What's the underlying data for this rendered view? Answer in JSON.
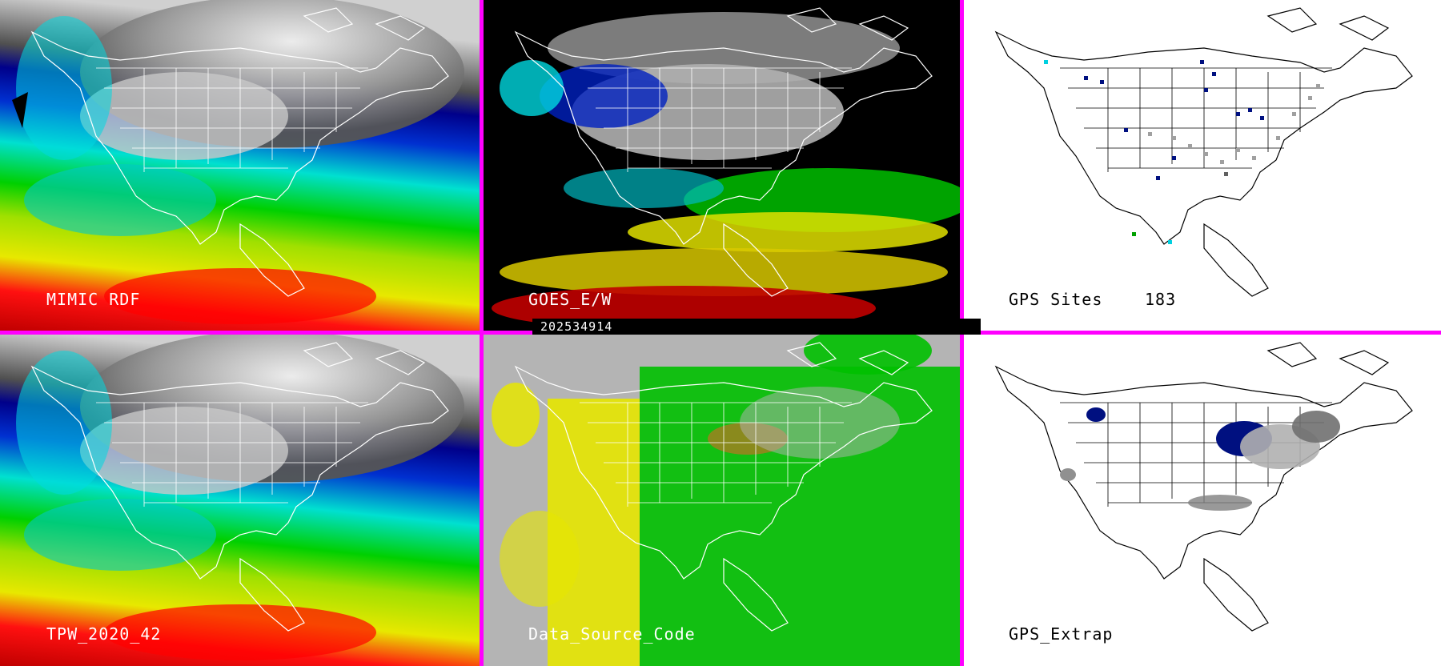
{
  "panels": {
    "mimic": {
      "label": "MIMIC RDF"
    },
    "goes": {
      "label": "GOES_E/W"
    },
    "gps_sites": {
      "label": "GPS Sites",
      "count": "183"
    },
    "tpw": {
      "label": "TPW_2020_42"
    },
    "dsc": {
      "label": "Data_Source_Code"
    },
    "gps_extrap": {
      "label": "GPS_Extrap"
    }
  },
  "timestamp": "202534914",
  "colors": {
    "border": "#ff00ff",
    "tpw_scale": [
      "#ff0000",
      "#e8e800",
      "#00d000",
      "#00e0e0",
      "#0000a0",
      "#808080"
    ],
    "dsc_gray": "#b4b4b4",
    "dsc_yellow": "#e6e600",
    "dsc_green": "#00c000",
    "dsc_brown": "#a08020"
  }
}
